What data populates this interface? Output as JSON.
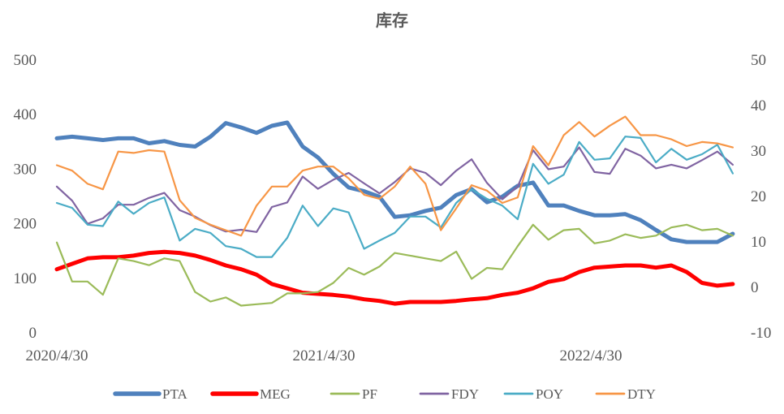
{
  "chart_data": {
    "type": "line",
    "title": "库存",
    "x": [
      "2020-04-30",
      "2020-05-21",
      "2020-06-11",
      "2020-07-02",
      "2020-07-23",
      "2020-08-13",
      "2020-09-03",
      "2020-09-24",
      "2020-10-15",
      "2020-11-05",
      "2020-11-26",
      "2020-12-17",
      "2021-01-07",
      "2021-01-28",
      "2021-02-18",
      "2021-03-11",
      "2021-04-01",
      "2021-04-22",
      "2021-05-13",
      "2021-06-03",
      "2021-06-24",
      "2021-07-15",
      "2021-08-05",
      "2021-08-26",
      "2021-09-16",
      "2021-10-07",
      "2021-10-28",
      "2021-11-18",
      "2021-12-09",
      "2021-12-30",
      "2022-01-20",
      "2022-02-10",
      "2022-03-03",
      "2022-03-24",
      "2022-04-14",
      "2022-05-05",
      "2022-05-26",
      "2022-06-16",
      "2022-07-07",
      "2022-07-28",
      "2022-08-18",
      "2022-09-08",
      "2022-09-29",
      "2022-10-20",
      "2022-11-10"
    ],
    "x_ticks": [
      "2020/4/30",
      "2021/4/30",
      "2022/4/30"
    ],
    "x_tick_dates": [
      "2020-04-30",
      "2021-04-30",
      "2022-04-30"
    ],
    "y_left": {
      "ylim": [
        0,
        500
      ],
      "ticks": [
        0,
        100,
        200,
        300,
        400,
        500
      ]
    },
    "y_right": {
      "ylim": [
        -10,
        50
      ],
      "ticks": [
        -10,
        0,
        10,
        20,
        30,
        40,
        50
      ]
    },
    "grid": false,
    "legend": "bottom",
    "series": [
      {
        "name": "PTA",
        "axis": "left",
        "color": "#4F81BD",
        "width": 5,
        "values": [
          355,
          358,
          355,
          352,
          355,
          355,
          346,
          350,
          343,
          340,
          358,
          383,
          375,
          365,
          378,
          384,
          340,
          320,
          290,
          265,
          258,
          248,
          211,
          214,
          222,
          228,
          251,
          262,
          238,
          248,
          268,
          274,
          232,
          232,
          222,
          214,
          214,
          216,
          205,
          187,
          170,
          165,
          165,
          165,
          180
        ]
      },
      {
        "name": "MEG",
        "axis": "left",
        "color": "#FF0000",
        "width": 5,
        "values": [
          115,
          125,
          135,
          137,
          137,
          140,
          145,
          147,
          145,
          140,
          132,
          122,
          115,
          105,
          88,
          80,
          72,
          70,
          68,
          65,
          60,
          57,
          52,
          55,
          55,
          55,
          57,
          60,
          62,
          68,
          72,
          80,
          92,
          97,
          110,
          118,
          120,
          122,
          122,
          118,
          122,
          110,
          90,
          85,
          88
        ]
      },
      {
        "name": "PF",
        "axis": "right",
        "color": "#9BBB59",
        "width": 2.2,
        "values": [
          9.7,
          1.1,
          1.1,
          -1.8,
          6.2,
          5.6,
          4.7,
          6.2,
          5.6,
          -1.2,
          -3.3,
          -2.4,
          -4.2,
          -3.9,
          -3.6,
          -1.5,
          -1.5,
          -1.2,
          0.8,
          4.1,
          2.6,
          4.4,
          7.4,
          6.8,
          6.2,
          5.6,
          7.7,
          1.7,
          4.1,
          3.8,
          8.9,
          13.6,
          10.3,
          12.4,
          12.7,
          9.5,
          10.1,
          11.5,
          10.7,
          11.2,
          13.0,
          13.6,
          12.4,
          12.7,
          11.2
        ]
      },
      {
        "name": "FDY",
        "axis": "right",
        "color": "#8064A2",
        "width": 2.2,
        "values": [
          22.0,
          18.9,
          13.8,
          15.0,
          18.0,
          18.0,
          19.5,
          20.6,
          16.8,
          15.4,
          13.5,
          12.1,
          12.5,
          12.0,
          17.5,
          18.5,
          24.2,
          21.5,
          23.5,
          25.0,
          22.7,
          20.5,
          23.0,
          26.0,
          25.0,
          22.3,
          25.5,
          28.0,
          22.8,
          19.2,
          22.0,
          30.0,
          25.8,
          26.4,
          30.6,
          25.2,
          24.8,
          30.3,
          28.8,
          26.0,
          26.8,
          26.0,
          27.8,
          29.7,
          26.8
        ]
      },
      {
        "name": "POY",
        "axis": "right",
        "color": "#4BACC6",
        "width": 2.2,
        "values": [
          18.4,
          17.3,
          13.6,
          13.3,
          18.7,
          16.0,
          18.4,
          19.6,
          10.1,
          12.7,
          11.8,
          8.9,
          8.3,
          6.5,
          6.5,
          10.7,
          17.8,
          13.3,
          17.2,
          16.3,
          8.3,
          10.1,
          11.8,
          15.4,
          15.4,
          13.0,
          18.4,
          21.4,
          19.3,
          17.8,
          14.8,
          27.0,
          22.6,
          24.6,
          31.8,
          27.9,
          28.2,
          33.0,
          32.7,
          27.3,
          30.3,
          27.9,
          29.1,
          31.2,
          24.9
        ]
      },
      {
        "name": "DTY",
        "axis": "right",
        "color": "#F79646",
        "width": 2.2,
        "values": [
          26.7,
          25.5,
          22.6,
          21.4,
          29.7,
          29.4,
          30.0,
          29.7,
          19.0,
          15.1,
          13.6,
          12.4,
          11.2,
          17.8,
          22.0,
          22.0,
          25.5,
          26.4,
          26.4,
          23.8,
          20.2,
          19.3,
          22.0,
          26.4,
          22.6,
          12.4,
          17.2,
          22.3,
          21.1,
          18.4,
          19.6,
          30.9,
          26.7,
          33.3,
          36.2,
          33.0,
          35.4,
          37.4,
          33.3,
          33.3,
          32.4,
          30.9,
          31.8,
          31.5,
          30.6
        ]
      }
    ]
  }
}
